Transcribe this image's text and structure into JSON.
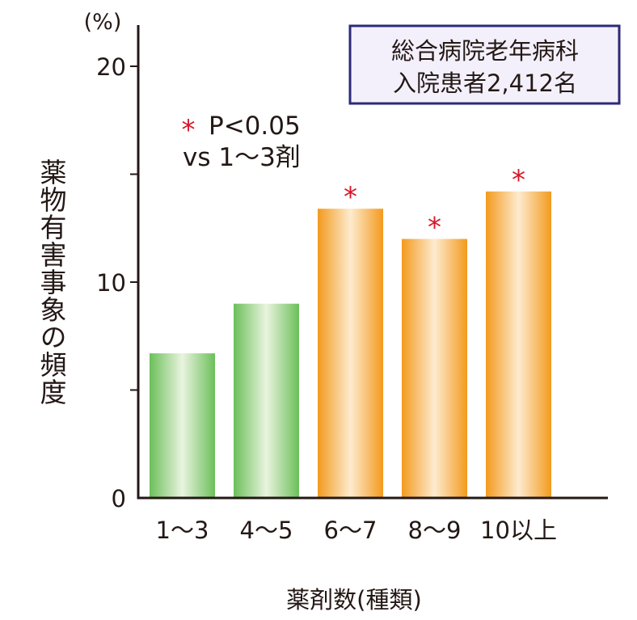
{
  "chart_data": {
    "type": "bar",
    "unit": "(%)",
    "ylabel": "薬物有害事象の頻度",
    "xlabel": "薬剤数(種類)",
    "categories": [
      "1～3",
      "4～5",
      "6～7",
      "8～9",
      "10以上"
    ],
    "values": [
      6.7,
      9.0,
      13.4,
      12.0,
      14.2
    ],
    "significant": [
      false,
      false,
      true,
      true,
      true
    ],
    "significance_mark": "*",
    "yticks": [
      0,
      10,
      20
    ],
    "ylim": [
      0,
      20.5
    ],
    "grid": false,
    "legend": {
      "mark": "*",
      "line1": "P<0.05",
      "line2": "vs 1～3剤"
    },
    "info_box": {
      "line1": "総合病院老年病科",
      "line2": "入院患者2,412名"
    },
    "colors": {
      "low_bar_edge": "#6cbf5a",
      "low_bar_center": "#e9f4df",
      "high_bar_edge": "#f39a1e",
      "high_bar_center": "#fdebcf",
      "significance": "#d7182a",
      "box_border": "#2c2a78",
      "box_fill": "#f3f0fb",
      "axis": "#231815"
    }
  }
}
